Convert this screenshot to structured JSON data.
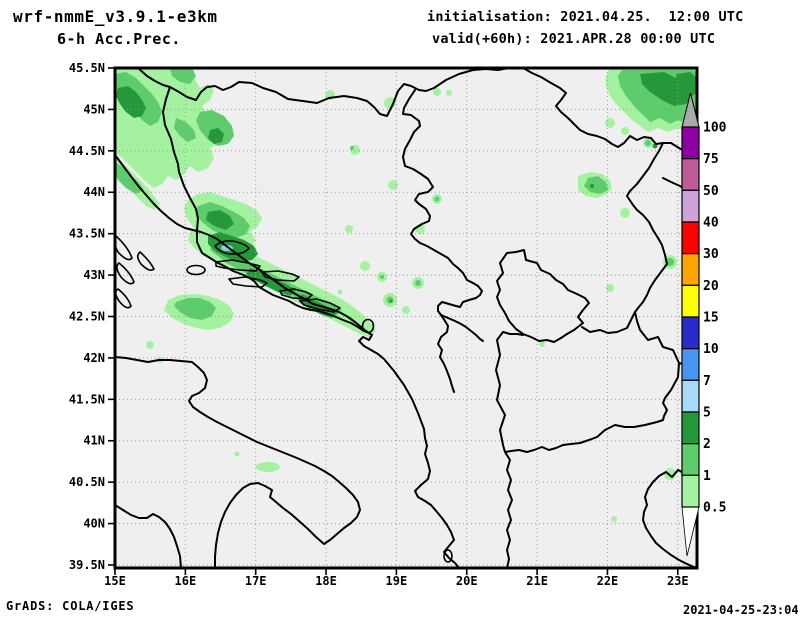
{
  "header": {
    "model_title": "wrf-nmmE_v3.9.1-e3km",
    "product_title": "6-h Acc.Prec.",
    "init_line": "initialisation: 2021.04.25.  12:00 UTC",
    "valid_line": "valid(+60h): 2021.APR.28 00:00 UTC"
  },
  "footer": {
    "credit": "GrADS: COLA/IGES",
    "timestamp": "2021-04-25-23:04"
  },
  "axes": {
    "lat_ticks": [
      {
        "label": "45.5N",
        "value": 45.5
      },
      {
        "label": "45N",
        "value": 45.0
      },
      {
        "label": "44.5N",
        "value": 44.5
      },
      {
        "label": "44N",
        "value": 44.0
      },
      {
        "label": "43.5N",
        "value": 43.5
      },
      {
        "label": "43N",
        "value": 43.0
      },
      {
        "label": "42.5N",
        "value": 42.5
      },
      {
        "label": "42N",
        "value": 42.0
      },
      {
        "label": "41.5N",
        "value": 41.5
      },
      {
        "label": "41N",
        "value": 41.0
      },
      {
        "label": "40.5N",
        "value": 40.5
      },
      {
        "label": "40N",
        "value": 40.0
      },
      {
        "label": "39.5N",
        "value": 39.5
      }
    ],
    "lon_ticks": [
      {
        "label": "15E",
        "value": 15
      },
      {
        "label": "16E",
        "value": 16
      },
      {
        "label": "17E",
        "value": 17
      },
      {
        "label": "18E",
        "value": 18
      },
      {
        "label": "19E",
        "value": 19
      },
      {
        "label": "20E",
        "value": 20
      },
      {
        "label": "21E",
        "value": 21
      },
      {
        "label": "22E",
        "value": 22
      },
      {
        "label": "23E",
        "value": 23
      }
    ]
  },
  "colorbar": {
    "labels": [
      "100",
      "75",
      "50",
      "40",
      "30",
      "20",
      "15",
      "10",
      "7",
      "5",
      "2",
      "1",
      "0.5"
    ],
    "values": [
      100,
      75,
      50,
      40,
      30,
      20,
      15,
      10,
      7,
      5,
      2,
      1,
      0.5
    ],
    "segments_top_to_bottom": [
      {
        "range": "75-100",
        "color": "#8f00a5"
      },
      {
        "range": "50-75",
        "color": "#bf5c97"
      },
      {
        "range": "40-50",
        "color": "#cfa3d9"
      },
      {
        "range": "30-40",
        "color": "#ff0000"
      },
      {
        "range": "20-30",
        "color": "#ffa500"
      },
      {
        "range": "15-20",
        "color": "#ffff00"
      },
      {
        "range": "10-15",
        "color": "#2b2bc8"
      },
      {
        "range": "7-10",
        "color": "#4597f2"
      },
      {
        "range": "5-7",
        "color": "#a6daf7"
      },
      {
        "range": "2-5",
        "color": "#259939"
      },
      {
        "range": "1-2",
        "color": "#5ecb6c"
      },
      {
        "range": "0.5-1",
        "color": "#a4f2a0"
      }
    ],
    "over_color": "#aaaaaa",
    "under_color": "#ffffff"
  },
  "map_style": {
    "background": "#efefef",
    "line_color": "#000000",
    "grid_color": "#9c9c9c",
    "precip_light": "#a4f2a0",
    "precip_mid": "#5ecb6c",
    "precip_dark": "#259939",
    "precip_max_spot": "#8ccff2"
  },
  "chart_data": {
    "type": "map",
    "field": "6-h accumulated precipitation",
    "region_extent": {
      "lon_min": 15,
      "lon_max": 23.3,
      "lat_min": 39.5,
      "lat_max": 45.5
    },
    "colorbar_levels": [
      0.5,
      1,
      2,
      5,
      7,
      10,
      15,
      20,
      30,
      40,
      50,
      75,
      100
    ],
    "notable_features": [
      "heavy precipitation cluster over NW domain (Croatian coast / Dalmatia, 15-18E 42.5-45.5N)",
      "local maximum 5-7 band over island near 16.6E 43.3N",
      "precipitation blob in NE corner near 22.5-23.2E 45-45.5N",
      "scattered light (0.5-2) spots across central Balkans"
    ]
  }
}
